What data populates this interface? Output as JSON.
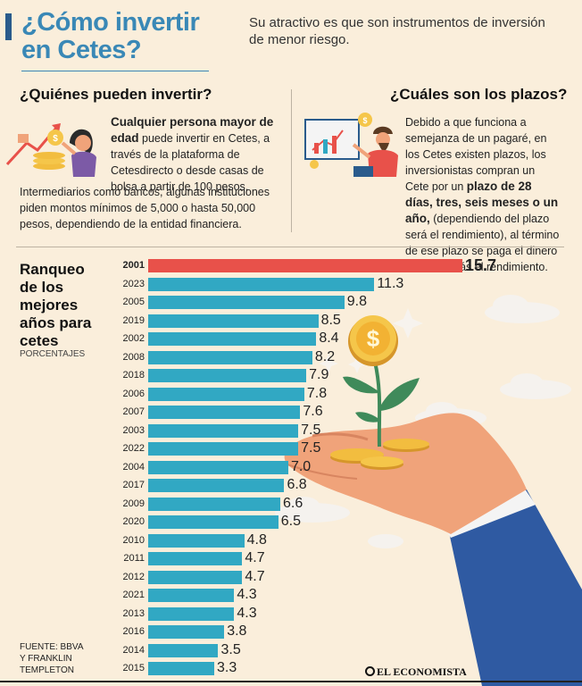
{
  "header": {
    "title_line1": "¿Cómo invertir",
    "title_line2": "en Cetes?",
    "subtitle": "Su atractivo es que son instrumentos de inversión de menor riesgo."
  },
  "left_section": {
    "heading": "¿Quiénes pueden invertir?",
    "bold_lead": "Cualquier persona mayor de edad",
    "text_a": " puede invertir en Cetes, a través de la plataforma de Cetesdirecto o desde casas de bolsa a partir de 100 pesos.",
    "text_b": "Intermediarios como bancos, algunas instituciones piden montos mínimos de 5,000 o hasta 50,000 pesos, dependiendo de la entidad financiera."
  },
  "right_section": {
    "heading": "¿Cuáles son los plazos?",
    "text_a": "Debido a que funciona a semejanza de un pagaré, en los Cetes existen plazos, los inversionistas compran un Cete por un ",
    "bold": "plazo de 28 días, tres, seis meses o un año,",
    "text_b": " (dependiendo del plazo será el rendimiento), al término de ese plazo se paga el dinero invertido más el rendimiento."
  },
  "ranking": {
    "title_lines": [
      "Ranqueo",
      "de los",
      "mejores",
      "años para",
      "cetes"
    ],
    "subtitle": "PORCENTAJES"
  },
  "footer": {
    "source_lines": [
      "FUENTE: BBVA",
      "Y FRANKLIN",
      "TEMPLETON"
    ],
    "brand": "EL ECONOMISTA"
  },
  "colors": {
    "highlight_bar": "#e8514a",
    "bar": "#31a8c3",
    "title": "#3a88b6"
  },
  "chart_data": {
    "type": "bar",
    "orientation": "horizontal",
    "title": "Ranqueo de los mejores años para cetes",
    "ylabel": "PORCENTAJES",
    "categories": [
      "2001",
      "2023",
      "2005",
      "2019",
      "2002",
      "2008",
      "2018",
      "2006",
      "2007",
      "2003",
      "2022",
      "2004",
      "2017",
      "2009",
      "2020",
      "2010",
      "2011",
      "2012",
      "2021",
      "2013",
      "2016",
      "2014",
      "2015"
    ],
    "values": [
      15.7,
      11.3,
      9.8,
      8.5,
      8.4,
      8.2,
      7.9,
      7.8,
      7.6,
      7.5,
      7.5,
      7.0,
      6.8,
      6.6,
      6.5,
      4.8,
      4.7,
      4.7,
      4.3,
      4.3,
      3.8,
      3.5,
      3.3
    ],
    "labels": [
      "15.7",
      "11.3",
      "9.8",
      "8.5",
      "8.4",
      "8.2",
      "7.9",
      "7.8",
      "7.6",
      "7.5",
      "7.5",
      "7.0",
      "6.8",
      "6.6",
      "6.5",
      "4.8",
      "4.7",
      "4.7",
      "4.3",
      "4.3",
      "3.8",
      "3.5",
      "3.3"
    ],
    "highlight": "2001",
    "xlim": [
      0,
      15.7
    ]
  }
}
